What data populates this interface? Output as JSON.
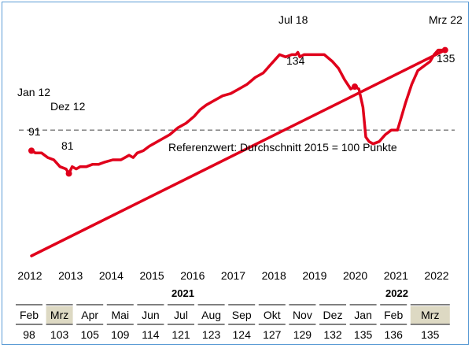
{
  "chart_data": {
    "type": "line",
    "x_ticks": [
      "2012",
      "2013",
      "2014",
      "2015",
      "2016",
      "2017",
      "2018",
      "2019",
      "2020",
      "2021",
      "2022"
    ],
    "reference_line": {
      "value": 100,
      "label": "Referenzwert:  Durchschnitt 2015 = 100 Punkte"
    },
    "ylim": [
      45,
      150
    ],
    "line_color": "#e0001b",
    "reference_color": "#808080",
    "series": [
      {
        "x": [
          2012.0,
          2012.1,
          2012.25,
          2012.4,
          2012.55,
          2012.7,
          2012.85,
          2012.92,
          2013.0,
          2013.1,
          2013.2,
          2013.35,
          2013.5,
          2013.65,
          2013.8,
          2014.0,
          2014.2,
          2014.4,
          2014.5,
          2014.6,
          2014.75,
          2014.9,
          2015.0,
          2015.2,
          2015.4,
          2015.6,
          2015.8,
          2016.0,
          2016.15,
          2016.3,
          2016.5,
          2016.7,
          2016.9,
          2017.1,
          2017.3,
          2017.5,
          2017.7,
          2017.85,
          2018.0,
          2018.1,
          2018.25,
          2018.4,
          2018.5,
          2018.55,
          2018.6,
          2018.7,
          2018.85,
          2019.0,
          2019.2,
          2019.4,
          2019.55,
          2019.7,
          2019.85,
          2019.95,
          2020.05,
          2020.15,
          2020.22,
          2020.3,
          2020.4,
          2020.55,
          2020.7,
          2020.85,
          2021.0,
          2021.1,
          2021.2,
          2021.35,
          2021.5,
          2021.65,
          2021.8,
          2021.9,
          2022.0,
          2022.08,
          2022.17
        ],
        "y": [
          91,
          90,
          90,
          88,
          87,
          84,
          83,
          81,
          84,
          83,
          84,
          84,
          85,
          85,
          86,
          87,
          87,
          89,
          88,
          90,
          91,
          93,
          94,
          96,
          98,
          101,
          103,
          106,
          109,
          111,
          113,
          115,
          116,
          118,
          120,
          123,
          125,
          128,
          131,
          133,
          132,
          133,
          133,
          134,
          132,
          133,
          133,
          133,
          133,
          130,
          127,
          122,
          118,
          119,
          118,
          110,
          97,
          95,
          94,
          95,
          98,
          100,
          100,
          106,
          112,
          120,
          126,
          128,
          130,
          133,
          135,
          135,
          135
        ]
      }
    ],
    "annotations": [
      {
        "label": "Jan 12",
        "value": "91"
      },
      {
        "label": "Dez 12",
        "value": "81"
      },
      {
        "label": "Jul 18",
        "value": "134"
      },
      {
        "label": "Mrz 22",
        "value": "135"
      }
    ]
  },
  "table": {
    "year_labels": [
      "2021",
      "2022"
    ],
    "months": [
      "Feb",
      "Mrz",
      "Apr",
      "Mai",
      "Jun",
      "Jul",
      "Aug",
      "Sep",
      "Okt",
      "Nov",
      "Dez",
      "Jan",
      "Feb",
      "Mrz"
    ],
    "values": [
      "98",
      "103",
      "105",
      "109",
      "114",
      "121",
      "123",
      "124",
      "127",
      "129",
      "132",
      "135",
      "136",
      "135"
    ],
    "highlight_color": "#ddd9c3"
  }
}
